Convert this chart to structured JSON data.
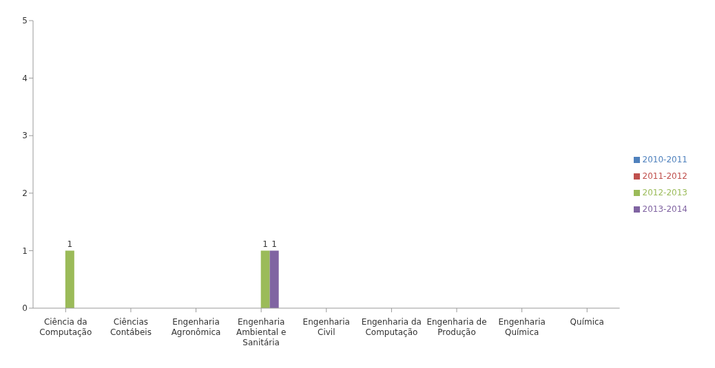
{
  "chart_data": {
    "type": "bar",
    "categories": [
      "Ciência da Computação",
      "Ciências Contábeis",
      "Engenharia Agronômica",
      "Engenharia Ambiental e Sanitária",
      "Engenharia Civil",
      "Engenharia da Computação",
      "Engenharia de Produção",
      "Engenharia Química",
      "Química"
    ],
    "series": [
      {
        "name": "2010-2011",
        "color": "#4f81bd",
        "values": [
          0,
          0,
          0,
          0,
          0,
          0,
          0,
          0,
          0
        ],
        "value_labels": [
          null,
          null,
          null,
          null,
          null,
          null,
          null,
          null,
          null
        ]
      },
      {
        "name": "2011-2012",
        "color": "#c0504d",
        "values": [
          0,
          0,
          0,
          0,
          0,
          0,
          0,
          0,
          0
        ],
        "value_labels": [
          null,
          null,
          null,
          null,
          null,
          null,
          null,
          null,
          null
        ]
      },
      {
        "name": "2012-2013",
        "color": "#9bbb59",
        "values": [
          1,
          0,
          0,
          1,
          0,
          0,
          0,
          0,
          0
        ],
        "value_labels": [
          "1",
          null,
          null,
          "1",
          null,
          null,
          null,
          null,
          null
        ]
      },
      {
        "name": "2013-2014",
        "color": "#8064a2",
        "values": [
          0,
          0,
          0,
          1,
          0,
          0,
          0,
          0,
          0
        ],
        "value_labels": [
          null,
          null,
          null,
          "1",
          null,
          null,
          null,
          null,
          null
        ]
      }
    ],
    "ylim": [
      0,
      5
    ],
    "yticks": [
      0,
      1,
      2,
      3,
      4,
      5
    ],
    "grid": false,
    "legend": "right"
  }
}
